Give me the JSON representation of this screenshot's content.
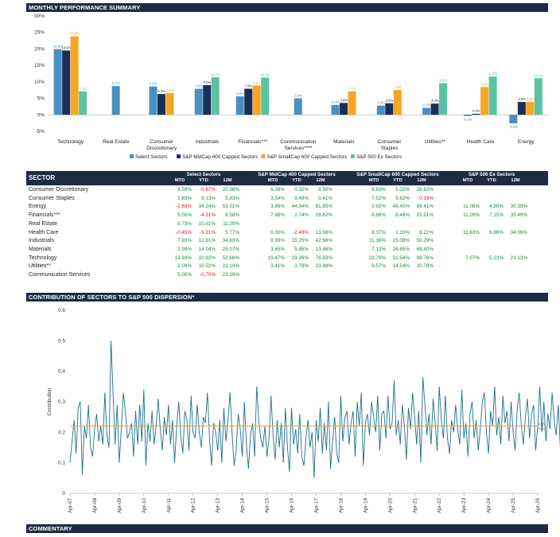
{
  "headers": {
    "top": "MONTHLY PERFORMANCE SUMMARY",
    "contribution": "CONTRIBUTION OF SECTORS TO S&P 500 DISPERSION*",
    "commentary": "COMMENTARY"
  },
  "colors": {
    "select": "#4a8fc0",
    "midcap": "#1a2f55",
    "smallcap": "#f5a623",
    "exsector": "#5bc3a2",
    "header_bg": "#1f2a44",
    "line": "#1f6f8b",
    "avg_line": "#d4a84a",
    "pos_text": "#1a8a3c",
    "neg_text": "#d11a1a"
  },
  "chart_data": [
    {
      "type": "bar",
      "categories": [
        "Technology",
        "Real Estate",
        "Consumer Discretionary",
        "Industrials",
        "Financials***",
        "Communication Services****",
        "Materials",
        "Consumer Staples",
        "Utilities**",
        "Health Care",
        "Energy"
      ],
      "category_lines": [
        [
          "Technology"
        ],
        [
          "Real Estate"
        ],
        [
          "Consumer",
          "Discretionary"
        ],
        [
          "Industrials"
        ],
        [
          "Financials***"
        ],
        [
          "Communication",
          "Services****"
        ],
        [
          "Materials"
        ],
        [
          "Consumer",
          "Staples"
        ],
        [
          "Utilities**"
        ],
        [
          "Health Care"
        ],
        [
          "Energy"
        ]
      ],
      "series": [
        {
          "name": "Select Sectors",
          "values": [
            19.9,
            8.7,
            8.6,
            7.9,
            5.6,
            5.0,
            3.0,
            2.8,
            2.1,
            -0.4,
            -2.6
          ],
          "labels": [
            "19.9%",
            "8.7%",
            "8.6%",
            "7.9%",
            "5.6%",
            "5.0%",
            "3.0%",
            "2.8%",
            "2.1%",
            "-0.4%",
            "-2.6%"
          ]
        },
        {
          "name": "S&P MidCap 400 Capped Sectors",
          "values": [
            19.5,
            null,
            6.3,
            9.0,
            7.9,
            null,
            3.6,
            3.5,
            3.4,
            0.3,
            3.9
          ],
          "labels": [
            "19.5%",
            "",
            "6.3%",
            "9.0%",
            "7.9%",
            "",
            "3.6%",
            "3.5%",
            "3.4%",
            "0.3%",
            "3.9%"
          ]
        },
        {
          "name": "S&P SmallCap 600 Capped Sectors",
          "values": [
            23.8,
            null,
            6.6,
            null,
            8.9,
            null,
            7.1,
            7.5,
            null,
            8.4,
            3.9
          ],
          "labels": [
            "23.8%",
            "",
            "6.6%",
            "",
            "8.9%",
            "",
            "7.1%",
            "7.5%",
            "",
            "8.4%",
            "3.9%"
          ]
        },
        {
          "name": "S&P 500 Ex Sectors",
          "values": [
            7.1,
            null,
            null,
            11.4,
            11.3,
            null,
            null,
            null,
            9.6,
            11.6,
            11.1
          ],
          "labels": [
            "7.1%",
            "",
            "",
            "11.4%",
            "11.3%",
            "",
            "",
            "",
            "9.6%",
            "11.6%",
            "11.1%"
          ]
        }
      ],
      "ylim": [
        -5,
        30
      ],
      "yticks": [
        "-5%",
        "0%",
        "5%",
        "10%",
        "15%",
        "20%",
        "25%",
        "30%"
      ],
      "legend": "bottom"
    },
    {
      "type": "table",
      "sector_header": "SECTOR",
      "groups": [
        "Select Sectors",
        "S&P MidCap 400 Capped Sectors",
        "S&P SmallCap 600 Capped Sectors",
        "S&P 500 Ex Sectors"
      ],
      "columns": [
        "MTD",
        "YTD",
        "12M"
      ],
      "rows": [
        {
          "name": "Consumer Discretionary",
          "values": [
            "8.59%",
            "-0.67%",
            "20.98%",
            "6.28%",
            "0.32%",
            "9.50%",
            "6.63%",
            "5.02%",
            "26.62%",
            "",
            "",
            ""
          ]
        },
        {
          "name": "Consumer Staples",
          "values": [
            "2.83%",
            "9.13%",
            "5.83%",
            "3.54%",
            "9.48%",
            "0.41%",
            "7.52%",
            "9.62%",
            "-0.16%",
            "",
            "",
            ""
          ]
        },
        {
          "name": "Energy",
          "values": [
            "-2.63%",
            "34.24%",
            "53.01%",
            "3.89%",
            "44.34%",
            "81.85%",
            "3.92%",
            "48.40%",
            "88.41%",
            "11.08%",
            "4.90%",
            "30.39%"
          ]
        },
        {
          "name": "Financials***",
          "values": [
            "5.56%",
            "-4.31%",
            "8.58%",
            "7.86%",
            "2.74%",
            "16.62%",
            "8.88%",
            "8.48%",
            "25.91%",
            "11.26%",
            "7.15%",
            "35.49%"
          ]
        },
        {
          "name": "Real Estate",
          "values": [
            "8.73%",
            "10.81%",
            "11.20%",
            "",
            "",
            "",
            "",
            "",
            "",
            "",
            "",
            ""
          ]
        },
        {
          "name": "Health Care",
          "values": [
            "-0.45%",
            "-5.31%",
            "5.77%",
            "0.30%",
            "-2.49%",
            "13.56%",
            "8.37%",
            "1.33%",
            "8.22%",
            "11.63%",
            "6.86%",
            "34.09%"
          ]
        },
        {
          "name": "Industrials",
          "values": [
            "7.93%",
            "12.91%",
            "34.83%",
            "8.99%",
            "15.25%",
            "42.66%",
            "11.36%",
            "15.08%",
            "50.29%",
            "",
            "",
            ""
          ]
        },
        {
          "name": "Materials",
          "values": [
            "2.99%",
            "14.04%",
            "25.07%",
            "3.65%",
            "5.85%",
            "13.46%",
            "7.12%",
            "26.65%",
            "69.40%",
            "",
            "",
            ""
          ]
        },
        {
          "name": "Technology",
          "values": [
            "19.93%",
            "10.92%",
            "52.66%",
            "19.47%",
            "29.26%",
            "76.83%",
            "23.79%",
            "31.54%",
            "89.76%",
            "7.07%",
            "5.13%",
            "23.13%"
          ]
        },
        {
          "name": "Utilities**",
          "values": [
            "2.09%",
            "10.52%",
            "22.10%",
            "3.41%",
            "3.78%",
            "23.89%",
            "9.57%",
            "14.54%",
            "20.78%",
            "",
            "",
            ""
          ]
        },
        {
          "name": "Communication Services",
          "values": [
            "5.05%",
            "-0.70%",
            "23.39%",
            "",
            "",
            "",
            "",
            "",
            "",
            "",
            "",
            ""
          ]
        }
      ]
    },
    {
      "type": "line",
      "ylabel": "Contribution",
      "ylim": [
        0,
        0.6
      ],
      "yticks": [
        "0",
        "0.1",
        "0.2",
        "0.3",
        "0.4",
        "0.5",
        "0.6"
      ],
      "xlim": [
        2007.25,
        2026.25
      ],
      "xticks": [
        "Apr-07",
        "Apr-08",
        "Apr-09",
        "Apr-10",
        "Apr-11",
        "Apr-12",
        "Apr-13",
        "Apr-14",
        "Apr-15",
        "Apr-16",
        "Apr-17",
        "Apr-18",
        "Apr-19",
        "Apr-20",
        "Apr-21",
        "Apr-22",
        "Apr-23",
        "Apr-24",
        "Apr-25",
        "Apr-26"
      ],
      "average": 0.22,
      "average_label": "0.22",
      "end_label": "0.23",
      "x_start": "Apr-07",
      "step": "month",
      "values": [
        0.1,
        0.17,
        0.24,
        0.13,
        0.28,
        0.3,
        0.06,
        0.22,
        0.18,
        0.29,
        0.15,
        0.12,
        0.21,
        0.26,
        0.17,
        0.22,
        0.16,
        0.33,
        0.19,
        0.15,
        0.5,
        0.32,
        0.16,
        0.29,
        0.1,
        0.21,
        0.33,
        0.27,
        0.18,
        0.2,
        0.23,
        0.12,
        0.27,
        0.16,
        0.29,
        0.17,
        0.34,
        0.09,
        0.23,
        0.17,
        0.27,
        0.16,
        0.22,
        0.31,
        0.21,
        0.14,
        0.25,
        0.19,
        0.29,
        0.16,
        0.24,
        0.1,
        0.22,
        0.3,
        0.19,
        0.13,
        0.27,
        0.24,
        0.14,
        0.32,
        0.2,
        0.18,
        0.29,
        0.2,
        0.15,
        0.25,
        0.23,
        0.33,
        0.18,
        0.09,
        0.23,
        0.2,
        0.14,
        0.24,
        0.1,
        0.28,
        0.17,
        0.24,
        0.33,
        0.2,
        0.09,
        0.14,
        0.26,
        0.21,
        0.12,
        0.3,
        0.16,
        0.08,
        0.19,
        0.23,
        0.12,
        0.35,
        0.24,
        0.18,
        0.15,
        0.22,
        0.12,
        0.18,
        0.32,
        0.19,
        0.11,
        0.24,
        0.15,
        0.23,
        0.1,
        0.28,
        0.15,
        0.07,
        0.28,
        0.16,
        0.21,
        0.13,
        0.26,
        0.12,
        0.09,
        0.18,
        0.24,
        0.15,
        0.2,
        0.05,
        0.24,
        0.17,
        0.28,
        0.13,
        0.23,
        0.14,
        0.3,
        0.08,
        0.17,
        0.25,
        0.13,
        0.1,
        0.32,
        0.17,
        0.25,
        0.27,
        0.16,
        0.23,
        0.27,
        0.12,
        0.3,
        0.22,
        0.33,
        0.09,
        0.23,
        0.26,
        0.19,
        0.3,
        0.25,
        0.2,
        0.32,
        0.14,
        0.26,
        0.27,
        0.18,
        0.32,
        0.21,
        0.23,
        0.37,
        0.19,
        0.24,
        0.16,
        0.29,
        0.22,
        0.11,
        0.28,
        0.21,
        0.33,
        0.25,
        0.16,
        0.27,
        0.1,
        0.38,
        0.29,
        0.19,
        0.26,
        0.16,
        0.31,
        0.23,
        0.14,
        0.35,
        0.24,
        0.18,
        0.32,
        0.18,
        0.13,
        0.24,
        0.2,
        0.29,
        0.21,
        0.16,
        0.34,
        0.18,
        0.23,
        0.12,
        0.26,
        0.3,
        0.18,
        0.24,
        0.14,
        0.21,
        0.3,
        0.33,
        0.2,
        0.13,
        0.27,
        0.22,
        0.35,
        0.19,
        0.25,
        0.16,
        0.32,
        0.23,
        0.27,
        0.17,
        0.3,
        0.2,
        0.14,
        0.28,
        0.33,
        0.22,
        0.16,
        0.25,
        0.31,
        0.18,
        0.26,
        0.29,
        0.14,
        0.22,
        0.35,
        0.2,
        0.3,
        0.17,
        0.26,
        0.21,
        0.33,
        0.24,
        0.19,
        0.29,
        0.15,
        0.32,
        0.26,
        0.1,
        0.3,
        0.18,
        0.25,
        0.37,
        0.19,
        0.24,
        0.29,
        0.16,
        0.33,
        0.21,
        0.27,
        0.18,
        0.31,
        0.23,
        0.14,
        0.28,
        0.36,
        0.2,
        0.34,
        0.17,
        0.52,
        0.25,
        0.22,
        0.11,
        0.33,
        0.2,
        0.08,
        0.27,
        0.33,
        0.19,
        0.35,
        0.13,
        0.24,
        0.3,
        0.18,
        0.28,
        0.12,
        0.25,
        0.32,
        0.21,
        0.17,
        0.3,
        0.24,
        0.14,
        0.27,
        0.33,
        0.2,
        0.11,
        0.29,
        0.16,
        0.24,
        0.33,
        0.21,
        0.09,
        0.26,
        0.34,
        0.2,
        0.15,
        0.28,
        0.24,
        0.13,
        0.3,
        0.2,
        0.32,
        0.35,
        0.33,
        0.24,
        0.23
      ]
    }
  ]
}
